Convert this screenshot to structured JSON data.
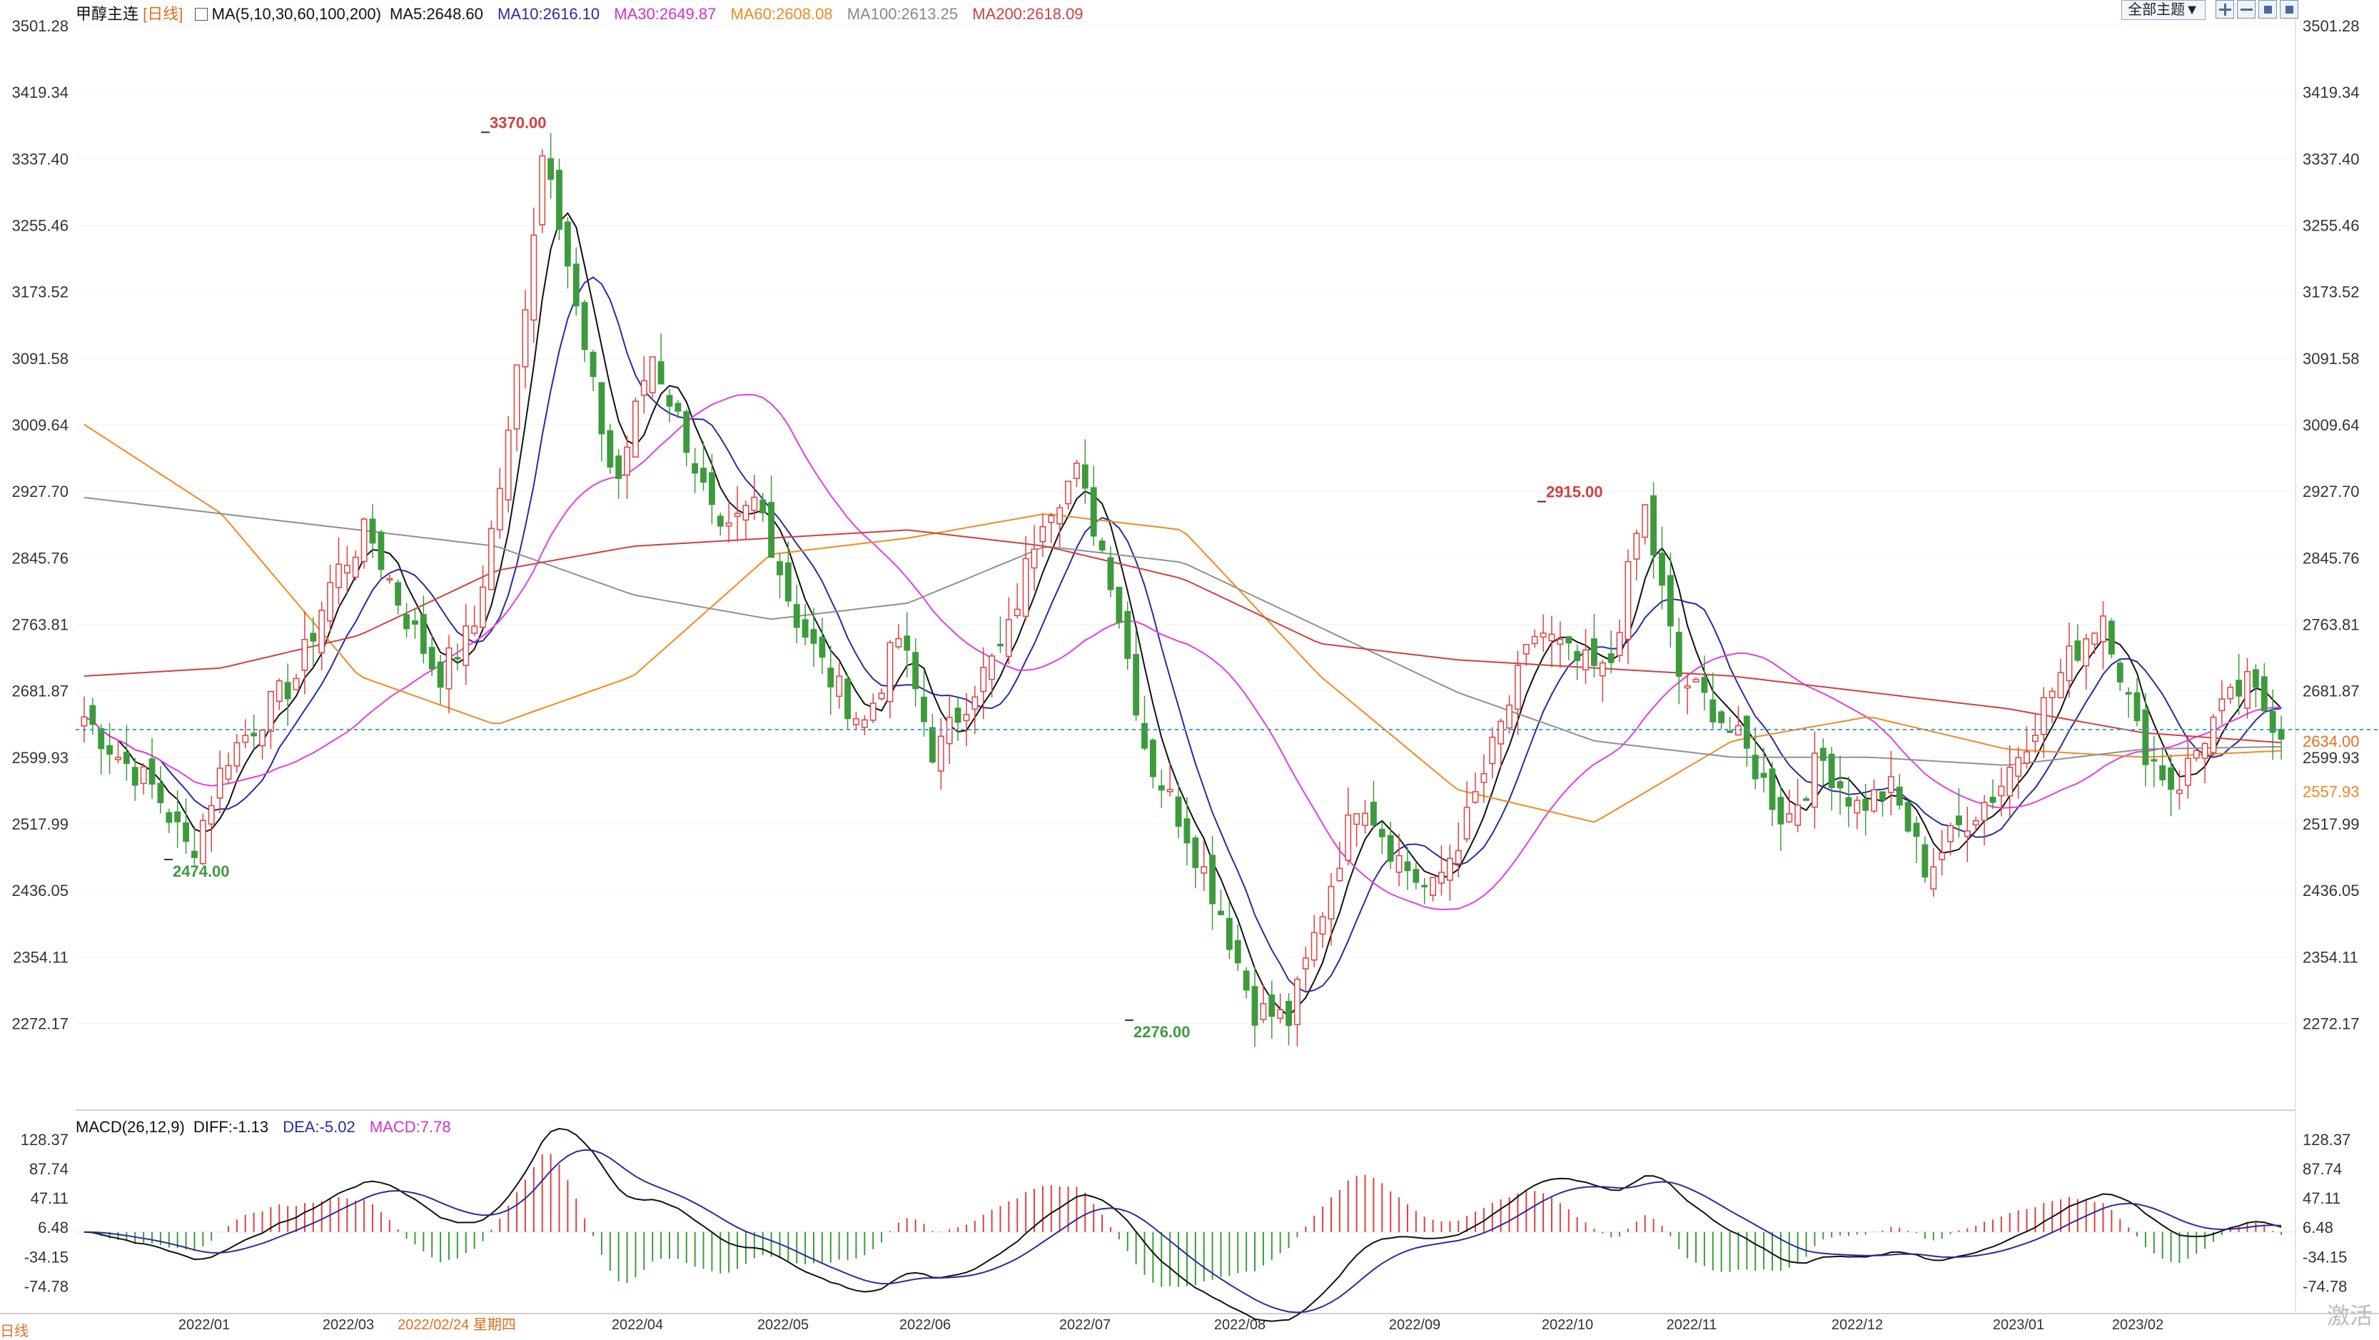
{
  "header": {
    "symbol": "甲醇主连",
    "period": "[日线]",
    "ma_label": "MA(5,10,30,60,100,200)",
    "ma5": "MA5:2648.60",
    "ma10": "MA10:2616.10",
    "ma30": "MA30:2649.87",
    "ma60": "MA60:2608.08",
    "ma100": "MA100:2613.25",
    "ma200": "MA200:2618.09"
  },
  "toolbar": {
    "theme_button": "全部主题▼"
  },
  "macd_header": {
    "label": "MACD(26,12,9)",
    "diff": "DIFF:-1.13",
    "dea": "DEA:-5.02",
    "macd": "MACD:7.78"
  },
  "watermark": "激活",
  "bottom_left": "日线",
  "colors": {
    "up": "#e04040",
    "down": "#3d9b3d",
    "ma5": "#111111",
    "ma10": "#2a2aa0",
    "ma30": "#e040e0",
    "ma60": "#f08a20",
    "ma100": "#909090",
    "ma200": "#d04040",
    "cursor": "#3aa0d8",
    "macd_up": "#e04040",
    "macd_down": "#3d9b3d"
  },
  "chart_data": {
    "type": "candlestick",
    "price_axis": {
      "ticks": [
        "3501.28",
        "3419.34",
        "3337.40",
        "3255.46",
        "3173.52",
        "3091.58",
        "3009.64",
        "2927.70",
        "2845.76",
        "2763.81",
        "2681.87",
        "2599.93",
        "2517.99",
        "2436.05",
        "2354.11",
        "2272.17"
      ],
      "ylim": [
        2240,
        3501.28
      ]
    },
    "macd_axis": {
      "ticks": [
        "128.37",
        "87.74",
        "47.11",
        "6.48",
        "-34.15",
        "-74.78"
      ],
      "ylim": [
        -105,
        140
      ]
    },
    "x_labels": [
      "2022/01",
      "2022/03",
      "2022/02/24 星期四",
      "2022/04",
      "2022/05",
      "2022/06",
      "2022/07",
      "2022/08",
      "2022/09",
      "2022/10",
      "2022/11",
      "2022/12",
      "2023/01",
      "2023/02"
    ],
    "annotations": {
      "high1": "3370.00",
      "low1": "2474.00",
      "low2": "2276.00",
      "high2": "2915.00"
    },
    "last_price": "2634.00",
    "right_label_2": "2557.93",
    "price_path": [
      2650,
      2600,
      2560,
      2480,
      2600,
      2650,
      2700,
      2820,
      2880,
      2780,
      2700,
      2760,
      3000,
      3370,
      3120,
      2930,
      3100,
      2990,
      2860,
      2920,
      2780,
      2700,
      2640,
      2750,
      2600,
      2680,
      2740,
      2900,
      2950,
      2820,
      2600,
      2520,
      2420,
      2290,
      2276,
      2420,
      2560,
      2480,
      2430,
      2520,
      2640,
      2760,
      2720,
      2700,
      2915,
      2700,
      2660,
      2600,
      2520,
      2600,
      2540,
      2560,
      2460,
      2520,
      2560,
      2640,
      2720,
      2780,
      2620,
      2560,
      2640,
      2690,
      2634
    ],
    "ma_targets": {
      "ma60": [
        3010,
        2900,
        2700,
        2640,
        2700,
        2850,
        2870,
        2900,
        2880,
        2700,
        2560,
        2520,
        2620,
        2650,
        2610,
        2600,
        2608
      ],
      "ma100": [
        2920,
        2900,
        2880,
        2860,
        2800,
        2770,
        2790,
        2860,
        2840,
        2760,
        2680,
        2620,
        2600,
        2600,
        2590,
        2610,
        2613
      ],
      "ma200": [
        2700,
        2710,
        2750,
        2830,
        2860,
        2870,
        2880,
        2860,
        2820,
        2740,
        2720,
        2710,
        2700,
        2680,
        2660,
        2630,
        2618
      ]
    }
  }
}
